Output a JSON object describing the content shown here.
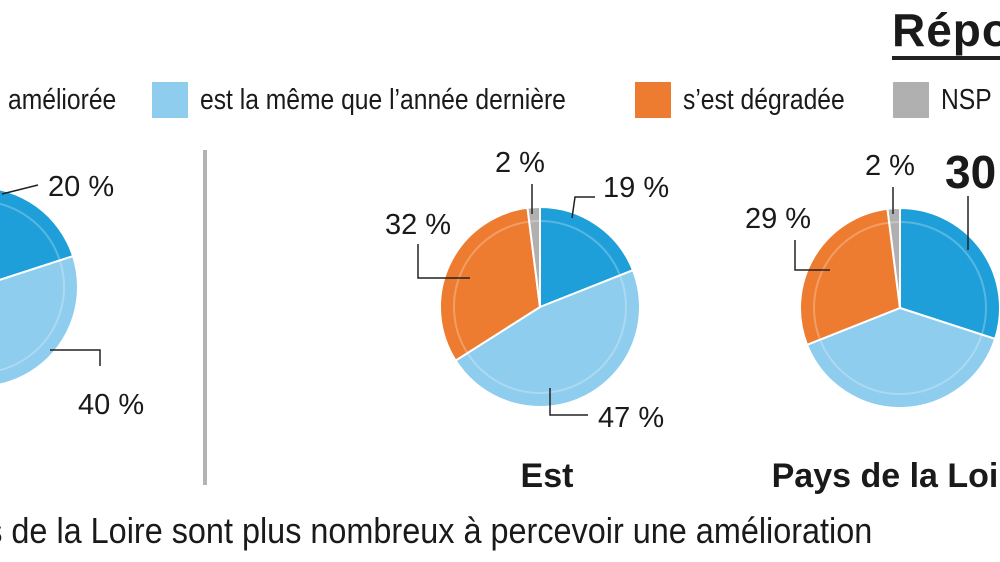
{
  "header": {
    "title": "Répo"
  },
  "legend": [
    {
      "label": "améliorée",
      "color": "#1f9fd9"
    },
    {
      "label": "est la même que l’année dernière",
      "color": "#8fcdee"
    },
    {
      "label": "s’est dégradée",
      "color": "#ee7c30"
    },
    {
      "label": "NSP",
      "color": "#b0b0b0"
    }
  ],
  "chart_data": [
    {
      "type": "pie",
      "title": "",
      "slices": [
        {
          "series": "améliorée",
          "value": 20,
          "label": "20 %"
        },
        {
          "series": "est la même que l’année dernière",
          "value": 40,
          "label": "40 %"
        }
      ]
    },
    {
      "type": "pie",
      "title": "Est",
      "slices": [
        {
          "series": "améliorée",
          "value": 19,
          "label": "19 %"
        },
        {
          "series": "est la même que l’année dernière",
          "value": 47,
          "label": "47 %"
        },
        {
          "series": "s’est dégradée",
          "value": 32,
          "label": "32 %"
        },
        {
          "series": "NSP",
          "value": 2,
          "label": "2 %"
        }
      ]
    },
    {
      "type": "pie",
      "title": "Pays de la Loi",
      "slices": [
        {
          "series": "améliorée",
          "value": 30,
          "label": "30"
        },
        {
          "series": "est la même que l’année dernière",
          "value": 39,
          "label": ""
        },
        {
          "series": "s’est dégradée",
          "value": 29,
          "label": "29 %"
        },
        {
          "series": "NSP",
          "value": 2,
          "label": "2 %"
        }
      ]
    }
  ],
  "caption": "ys de la Loire sont plus nombreux à percevoir une amélioration"
}
